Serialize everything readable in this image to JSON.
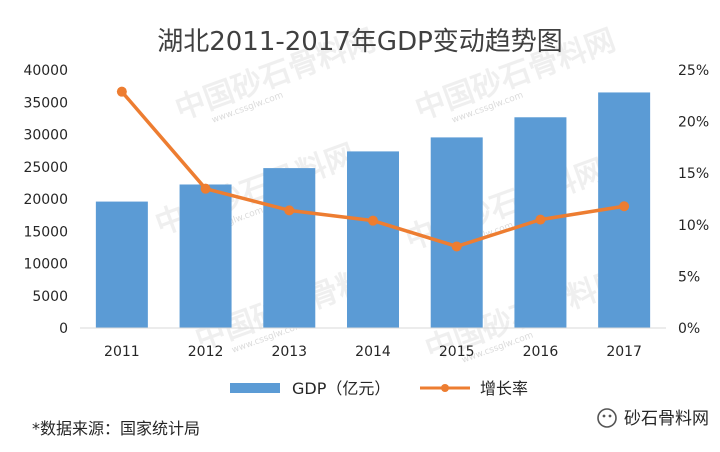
{
  "chart_data": {
    "type": "bar",
    "title": "湖北2011-2017年GDP变动趋势图",
    "categories": [
      "2011",
      "2012",
      "2013",
      "2014",
      "2015",
      "2016",
      "2017"
    ],
    "series": [
      {
        "name": "GDP（亿元）",
        "type": "bar",
        "axis": "left",
        "color": "#5b9bd5",
        "values": [
          19600,
          22250,
          24790,
          27380,
          29550,
          32670,
          36520
        ]
      },
      {
        "name": "增长率",
        "type": "line",
        "axis": "right",
        "color": "#ed7d31",
        "values": [
          22.9,
          13.5,
          11.4,
          10.4,
          7.9,
          10.5,
          11.8
        ]
      }
    ],
    "y_left": {
      "min": 0,
      "max": 40000,
      "ticks": [
        "0",
        "5000",
        "10000",
        "15000",
        "20000",
        "25000",
        "30000",
        "35000",
        "40000"
      ]
    },
    "y_right": {
      "min": 0,
      "max": 25,
      "ticks": [
        "0%",
        "5%",
        "10%",
        "15%",
        "20%",
        "25%"
      ]
    },
    "grid": false,
    "legend_position": "bottom"
  },
  "footer": {
    "source": "*数据来源：国家统计局",
    "brand": "砂石骨料网"
  },
  "watermark": {
    "text": "中国砂石骨料网",
    "url": "www.cssglw.com"
  }
}
